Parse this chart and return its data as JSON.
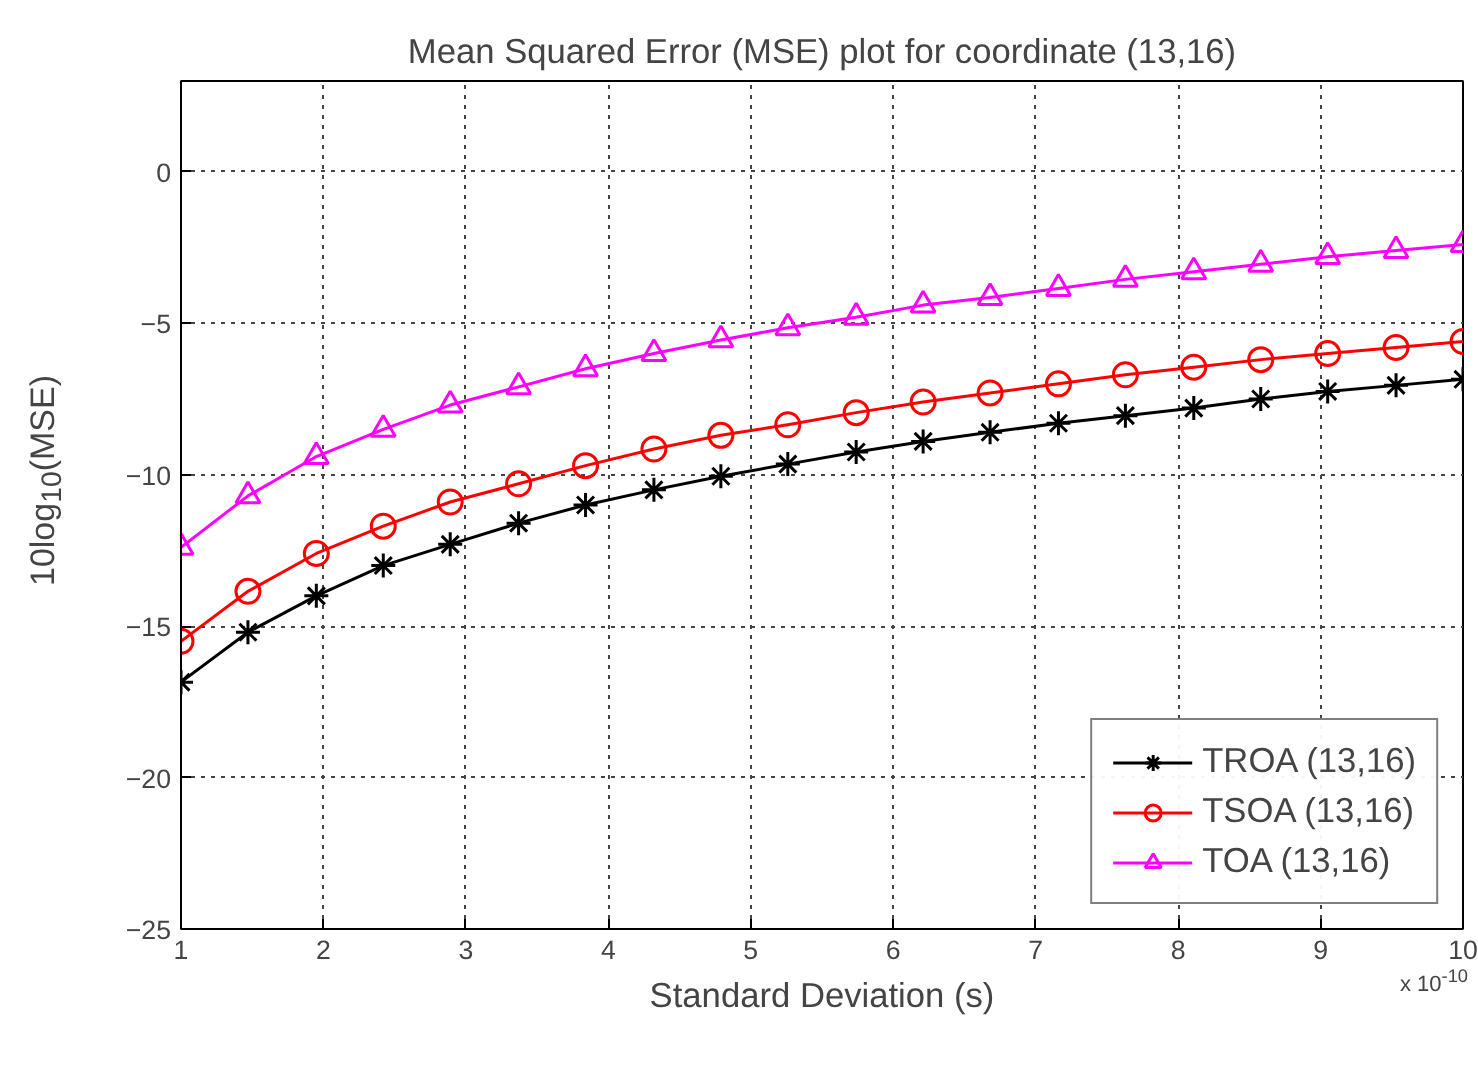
{
  "chart_data": {
    "type": "line",
    "title": "Mean Squared Error (MSE) plot for coordinate (13,16)",
    "xlabel": "Standard Deviation (s)",
    "ylabel": "10log$_{10}$(MSE)",
    "x": [
      1,
      1.47,
      1.95,
      2.42,
      2.89,
      3.37,
      3.84,
      4.32,
      4.79,
      5.26,
      5.74,
      6.21,
      6.68,
      7.16,
      7.63,
      8.11,
      8.58,
      9.05,
      9.53,
      10
    ],
    "series": [
      {
        "name": "TROA (13,16)",
        "color": "#000000",
        "marker": "cross",
        "values": [
          -16.85,
          -15.2,
          -14.0,
          -13.0,
          -12.3,
          -11.6,
          -11.0,
          -10.5,
          -10.05,
          -9.65,
          -9.25,
          -8.9,
          -8.6,
          -8.3,
          -8.05,
          -7.8,
          -7.5,
          -7.25,
          -7.05,
          -6.85
        ]
      },
      {
        "name": "TSOA (13,16)",
        "color": "#ff0000",
        "marker": "circle",
        "values": [
          -15.5,
          -13.85,
          -12.6,
          -11.7,
          -10.9,
          -10.3,
          -9.7,
          -9.15,
          -8.7,
          -8.35,
          -7.95,
          -7.6,
          -7.3,
          -7.0,
          -6.7,
          -6.45,
          -6.2,
          -6.0,
          -5.8,
          -5.6
        ]
      },
      {
        "name": "TOA (13,16)",
        "color": "#ff00ff",
        "marker": "triangle",
        "values": [
          -12.4,
          -10.7,
          -9.4,
          -8.5,
          -7.7,
          -7.1,
          -6.5,
          -6.0,
          -5.55,
          -5.15,
          -4.8,
          -4.4,
          -4.15,
          -3.85,
          -3.55,
          -3.3,
          -3.05,
          -2.8,
          -2.6,
          -2.4
        ]
      }
    ],
    "xlim": [
      1,
      10
    ],
    "xticks": [
      1,
      2,
      3,
      4,
      5,
      6,
      7,
      8,
      9,
      10
    ],
    "ylim": [
      -25,
      3
    ],
    "yticks": [
      -25,
      -20,
      -15,
      -10,
      -5,
      0
    ],
    "annotations": [
      "x 10$^{-10}$"
    ],
    "grid": true,
    "legend": "bottom right",
    "line_style": "solid"
  }
}
